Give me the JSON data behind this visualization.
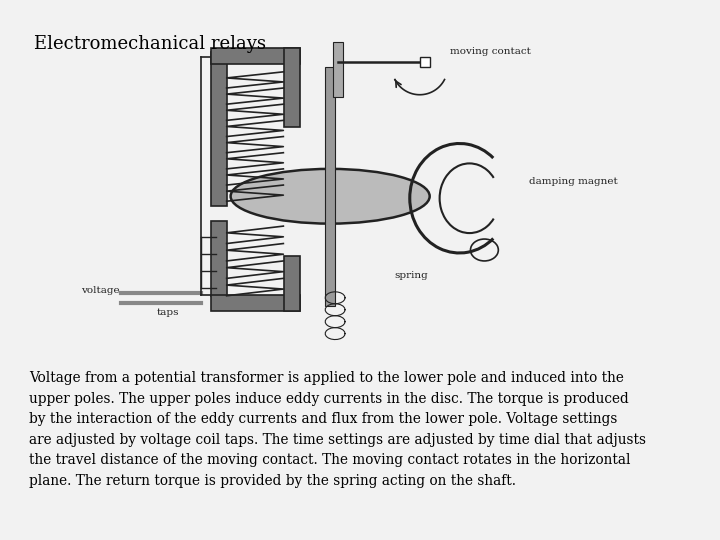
{
  "page_bg": "#f2f2f2",
  "diagram_bg": "#cccccc",
  "title": "Electromechanical relays",
  "title_fontsize": 13,
  "body_text": "Voltage from a potential transformer is applied to the lower pole and induced into the\nupper poles. The upper poles induce eddy currents in the disc. The torque is produced\nby the interaction of the eddy currents and flux from the lower pole. Voltage settings\nare adjusted by voltage coil taps. The time settings are adjusted by time dial that adjusts\nthe travel distance of the moving contact. The moving contact rotates in the horizontal\nplane. The return torque is provided by the spring acting on the shaft.",
  "body_fontsize": 9.8,
  "label_moving_contact": "moving contact",
  "label_damping_magnet": "damping magnet",
  "label_voltage": "voltage",
  "label_taps": "taps",
  "label_spring": "spring",
  "line_color": "#222222",
  "core_color": "#777777",
  "coil_fill": "#ffffff",
  "disc_color": "#bbbbbb",
  "label_fontsize": 7.5
}
